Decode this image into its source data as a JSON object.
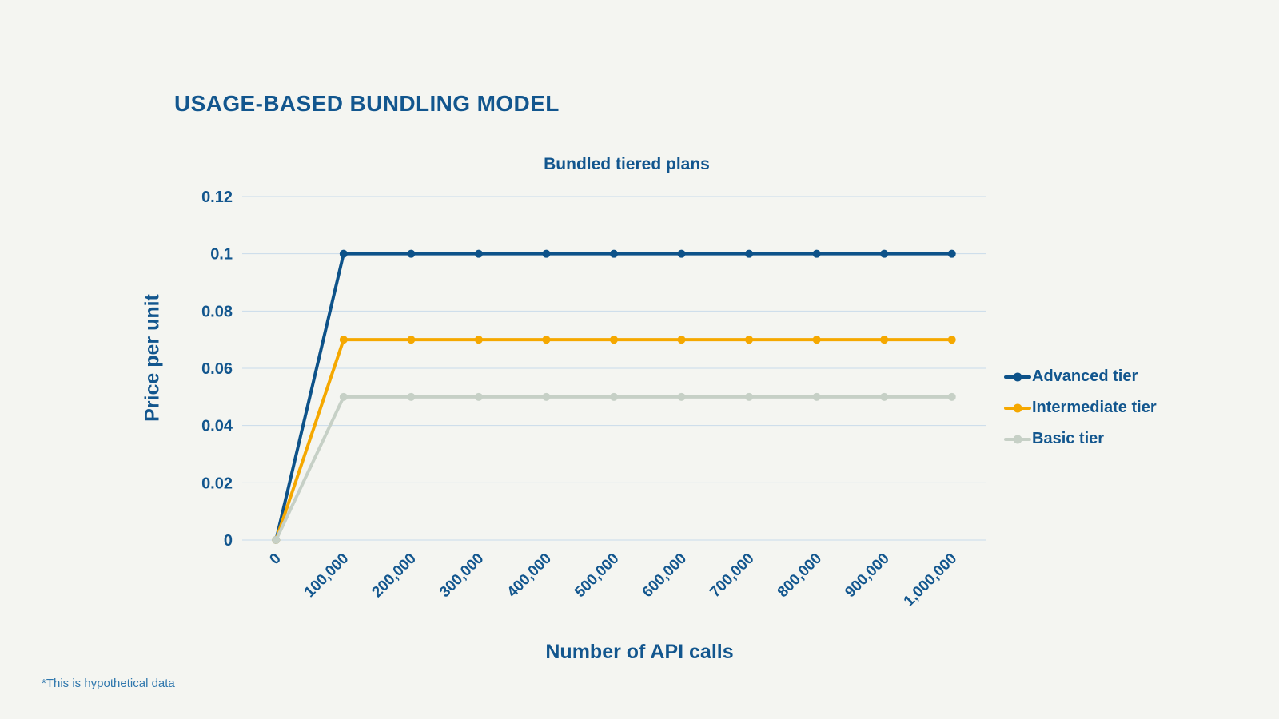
{
  "page": {
    "background": "#f4f5f1",
    "title": "USAGE-BASED BUNDLING MODEL",
    "footnote": "*This is hypothetical data",
    "text_color": "#12568e"
  },
  "chart_data": {
    "type": "line",
    "title": "Bundled tiered plans",
    "xlabel": "Number of API calls",
    "ylabel": "Price per unit",
    "x_tick_labels": [
      "0",
      "100,000",
      "200,000",
      "300,000",
      "400,000",
      "500,000",
      "600,000",
      "700,000",
      "800,000",
      "900,000",
      "1,000,000"
    ],
    "x_values": [
      0,
      100000,
      200000,
      300000,
      400000,
      500000,
      600000,
      700000,
      800000,
      900000,
      1000000
    ],
    "y_ticks": [
      0,
      0.02,
      0.04,
      0.06,
      0.08,
      0.1,
      0.12
    ],
    "y_tick_labels": [
      "0",
      "0.02",
      "0.04",
      "0.06",
      "0.08",
      "0.1",
      "0.12"
    ],
    "ylim": [
      0,
      0.12
    ],
    "grid": true,
    "legend_position": "right",
    "grid_color": "#c9dbea",
    "series": [
      {
        "name": "Advanced tier",
        "color": "#0d5289",
        "values": [
          0,
          0.1,
          0.1,
          0.1,
          0.1,
          0.1,
          0.1,
          0.1,
          0.1,
          0.1,
          0.1
        ]
      },
      {
        "name": "Intermediate tier",
        "color": "#f5a800",
        "values": [
          0,
          0.07,
          0.07,
          0.07,
          0.07,
          0.07,
          0.07,
          0.07,
          0.07,
          0.07,
          0.07
        ]
      },
      {
        "name": "Basic tier",
        "color": "#c6d0c6",
        "values": [
          0,
          0.05,
          0.05,
          0.05,
          0.05,
          0.05,
          0.05,
          0.05,
          0.05,
          0.05,
          0.05
        ]
      }
    ]
  }
}
